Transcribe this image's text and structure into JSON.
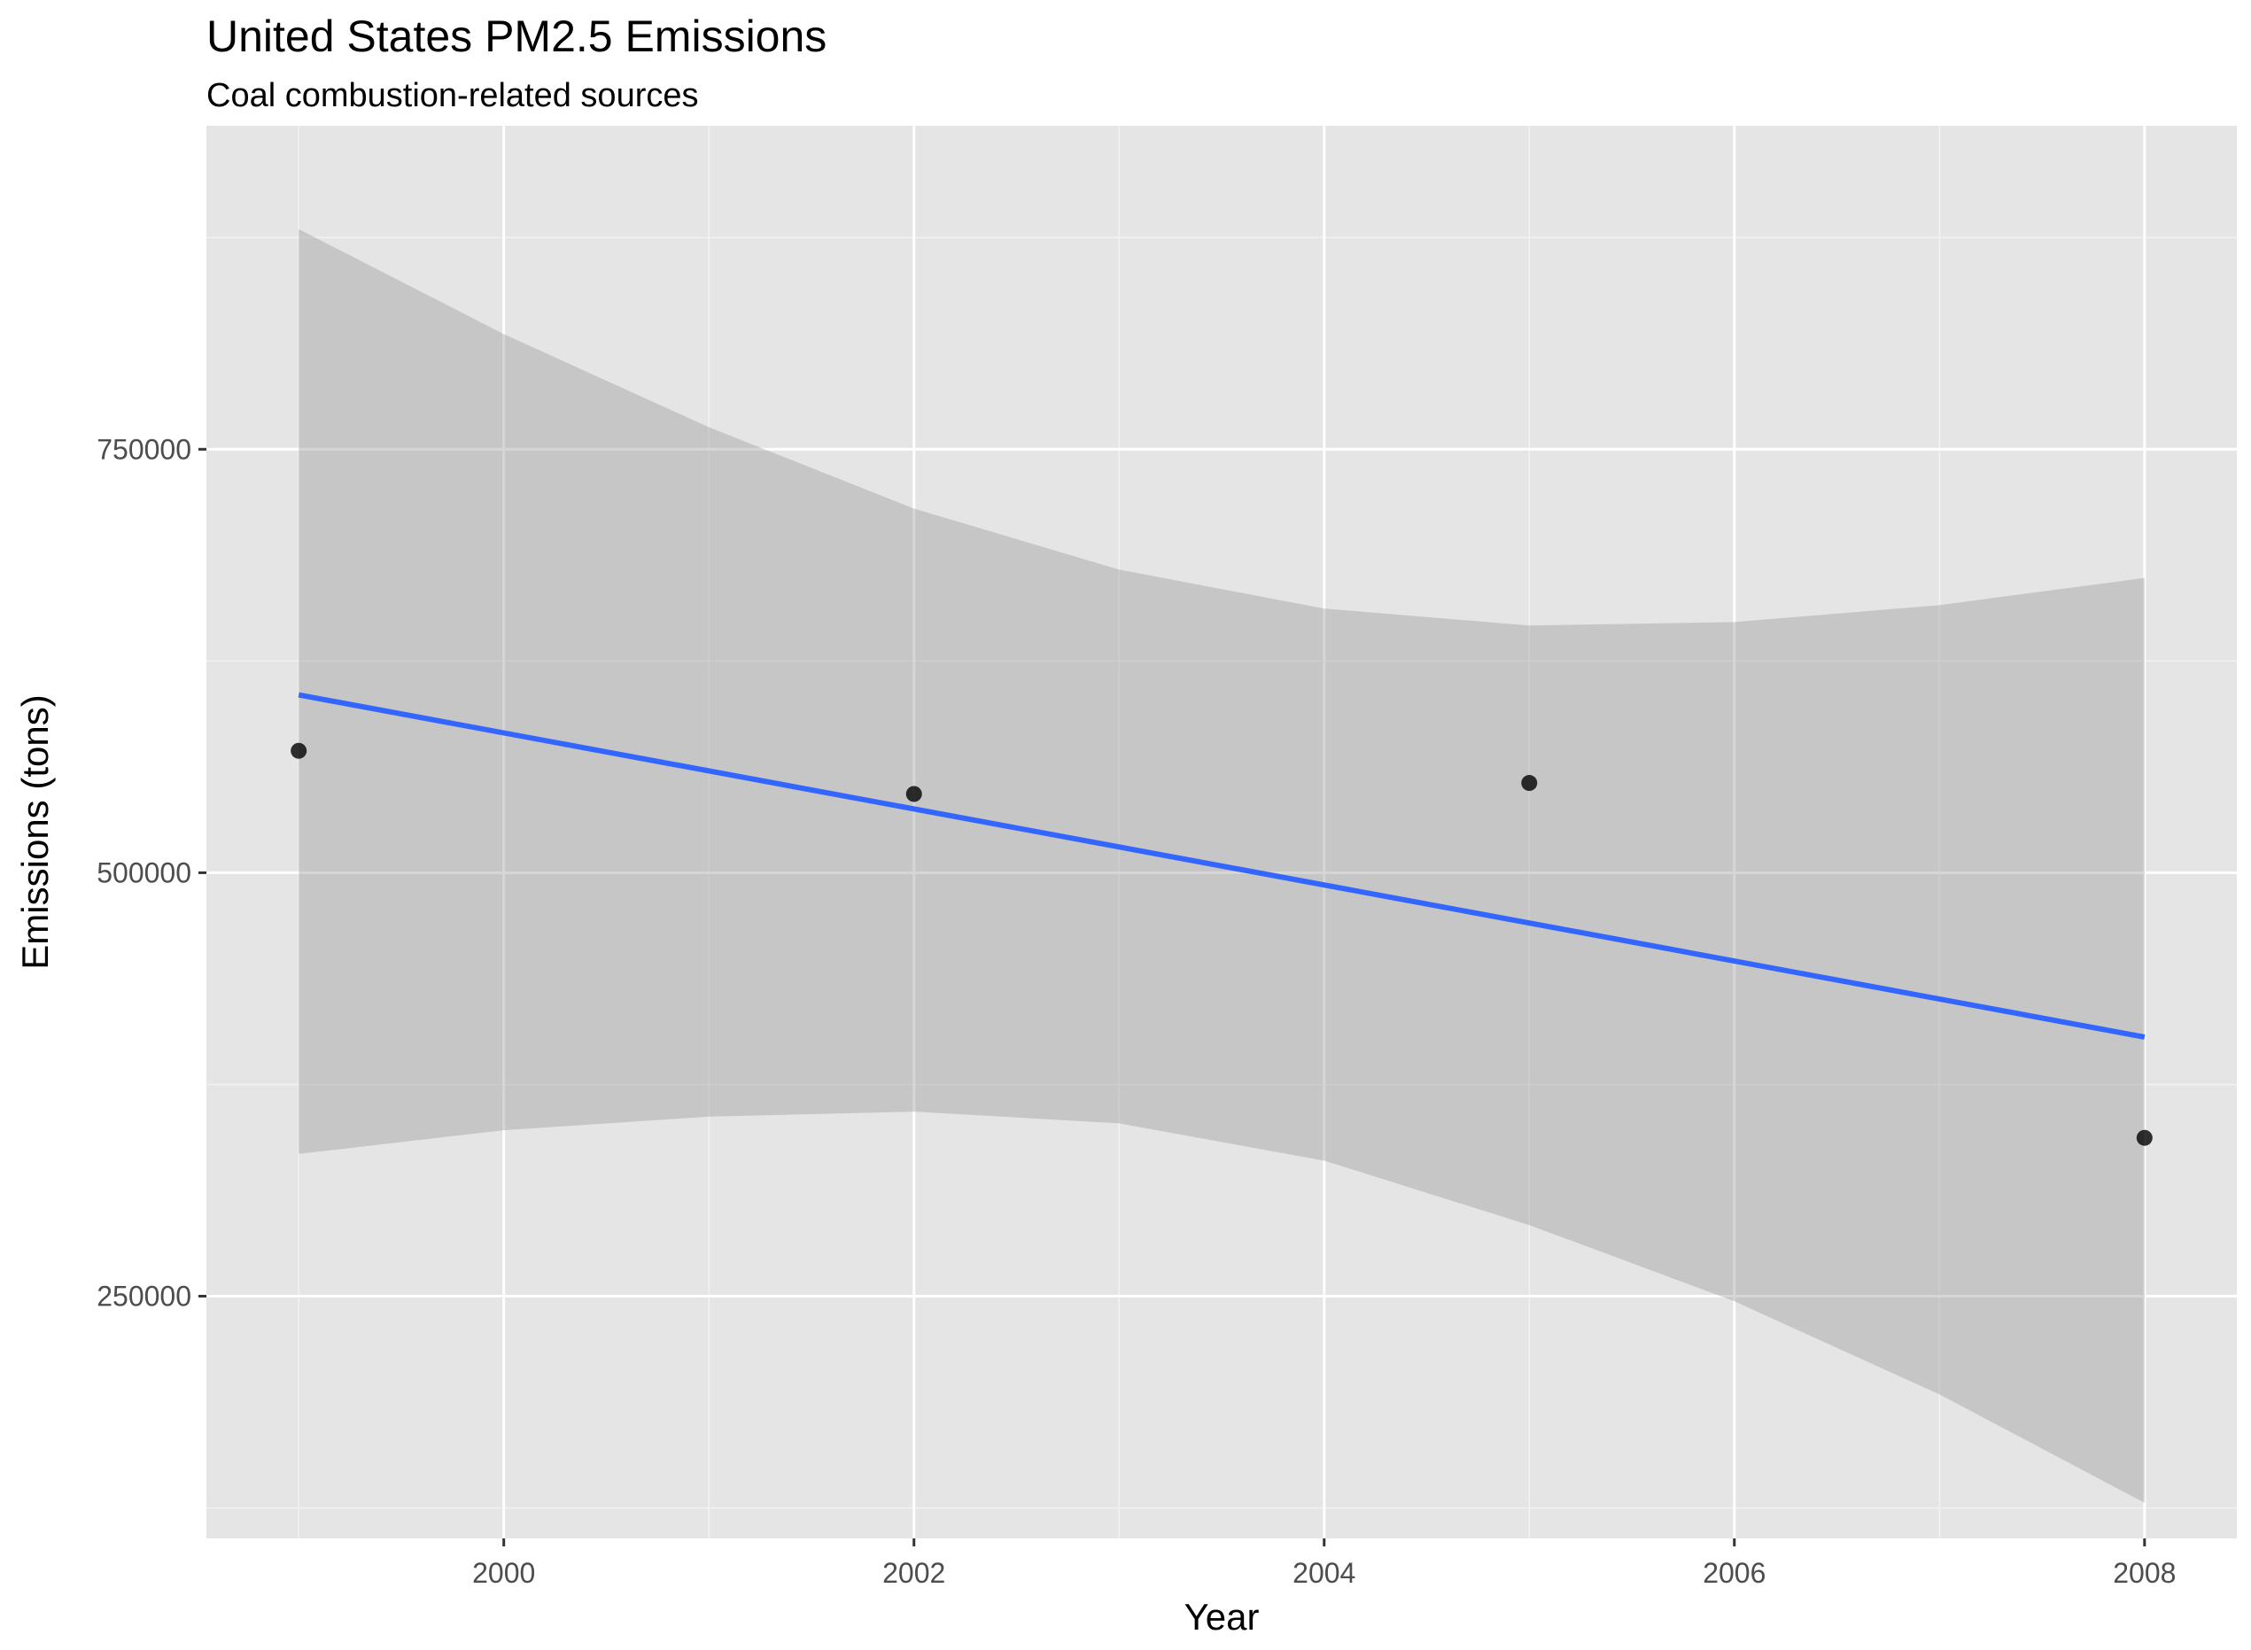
{
  "chart_data": {
    "type": "scatter",
    "title": "United States PM2.5 Emissions",
    "subtitle": "Coal combustion-related sources",
    "xlabel": "Year",
    "ylabel": "Emissions (tons)",
    "xlim": [
      1998.55,
      2008.45
    ],
    "ylim": [
      107000,
      941000
    ],
    "x_ticks": [
      2000,
      2002,
      2004,
      2006,
      2008
    ],
    "x_tick_labels": [
      "2000",
      "2002",
      "2004",
      "2006",
      "2008"
    ],
    "x_minor_ticks": [
      1999,
      2001,
      2003,
      2005,
      2007
    ],
    "y_ticks": [
      250000,
      500000,
      750000
    ],
    "y_tick_labels": [
      "250000",
      "500000",
      "750000"
    ],
    "y_minor_ticks": [
      125000,
      375000,
      625000,
      875000
    ],
    "grid": true,
    "points": {
      "x": [
        1999,
        2002,
        2005,
        2008
      ],
      "y": [
        572000,
        546500,
        553000,
        343500
      ]
    },
    "trend_line": {
      "method": "linear",
      "x": [
        1999,
        2008
      ],
      "y": [
        605000,
        403000
      ]
    },
    "confidence_band": {
      "x": [
        1999,
        2000,
        2001,
        2002,
        2003,
        2004,
        2005,
        2006,
        2007,
        2008
      ],
      "upper": [
        880000,
        818000,
        763000,
        715000,
        679000,
        656000,
        646000,
        648000,
        658000,
        674000
      ],
      "lower": [
        334000,
        348000,
        356000,
        359000,
        352000,
        330000,
        292000,
        247000,
        192000,
        128000
      ]
    },
    "colors": {
      "panel_background": "#e5e5e5",
      "grid_major": "#ffffff",
      "grid_minor": "#f2f2f2",
      "band_fill": "#999999",
      "band_opacity": 0.4,
      "trend_line": "#3366ff",
      "points": "#000000",
      "tick_text": "#4d4d4d",
      "title_text": "#000000"
    }
  }
}
